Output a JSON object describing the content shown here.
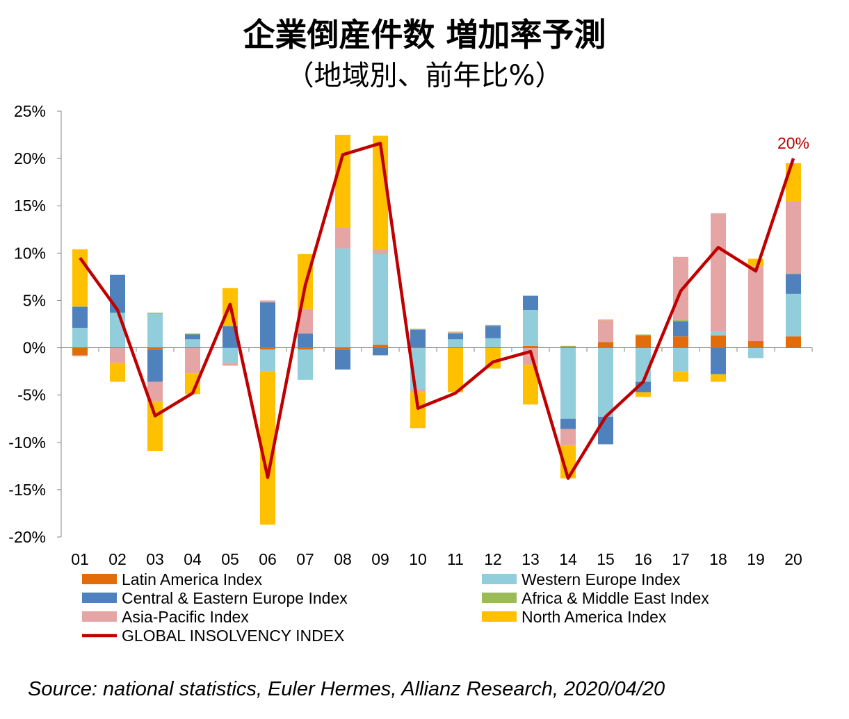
{
  "title": "企業倒産件数 増加率予測",
  "subtitle": "（地域別、前年比%）",
  "source": "Source: national statistics, Euler Hermes, Allianz Research, 2020/04/20",
  "chart_data": {
    "type": "bar",
    "stacked": true,
    "categories": [
      "01",
      "02",
      "03",
      "04",
      "05",
      "06",
      "07",
      "08",
      "09",
      "10",
      "11",
      "12",
      "13",
      "14",
      "15",
      "16",
      "17",
      "18",
      "19",
      "20"
    ],
    "ylim": [
      -20,
      25
    ],
    "yticks": [
      25,
      20,
      15,
      10,
      5,
      0,
      -5,
      -10,
      -15,
      -20
    ],
    "ytick_labels": [
      "25%",
      "20%",
      "15%",
      "10%",
      "5%",
      "0%",
      "-5%",
      "-10%",
      "-15%",
      "-20%"
    ],
    "series": [
      {
        "name": "Latin America Index",
        "color": "#E36C0A",
        "values": [
          -0.8,
          0,
          -0.2,
          0,
          0,
          -0.2,
          -0.2,
          -0.2,
          0.3,
          0,
          0,
          0,
          0.2,
          0.1,
          0.6,
          1.3,
          1.2,
          1.3,
          0.7,
          1.2
        ]
      },
      {
        "name": "Western Europe Index",
        "color": "#92CDDC",
        "values": [
          2.1,
          3.7,
          3.6,
          0.9,
          -1.6,
          -2.3,
          -3.2,
          10.5,
          9.6,
          -4.4,
          0.9,
          1.0,
          3.8,
          -7.5,
          -7.3,
          -3.6,
          -2.5,
          0.4,
          -1.1,
          4.5
        ]
      },
      {
        "name": "Central & Eastern Europe Index",
        "color": "#4F81BD",
        "values": [
          2.2,
          4.0,
          -3.4,
          0.5,
          2.3,
          4.8,
          1.5,
          -2.1,
          -0.8,
          1.9,
          0.6,
          1.3,
          1.5,
          -1.1,
          -2.9,
          -1.1,
          1.6,
          -2.8,
          0,
          2.1
        ]
      },
      {
        "name": "Africa & Middle East Index",
        "color": "#9BBB59",
        "values": [
          0.1,
          0,
          0.1,
          0.1,
          0,
          0,
          0,
          0,
          0.1,
          0.1,
          0.1,
          0.1,
          0,
          0.1,
          0,
          0.1,
          0.1,
          0,
          0,
          0
        ]
      },
      {
        "name": "Asia-Pacific Index",
        "color": "#E6A5A5",
        "values": [
          -0.1,
          -1.6,
          -2.1,
          -2.7,
          -0.3,
          0.2,
          2.6,
          2.2,
          0.4,
          -0.3,
          0.1,
          0,
          -1.8,
          -1.7,
          2.3,
          0,
          6.7,
          12.5,
          7.9,
          7.7
        ]
      },
      {
        "name": "North America Index",
        "color": "#FFC000",
        "values": [
          6.0,
          -2.0,
          -5.2,
          -2.2,
          4.0,
          -16.2,
          5.8,
          9.8,
          12.0,
          -3.8,
          -4.7,
          -2.2,
          -4.2,
          -3.5,
          0.1,
          -0.5,
          -1.1,
          -0.8,
          0.8,
          4.0
        ]
      }
    ],
    "line": {
      "name": "GLOBAL INSOLVENCY INDEX",
      "color": "#C00000",
      "values": [
        9.5,
        4.0,
        -7.2,
        -4.8,
        4.6,
        -13.7,
        6.6,
        20.4,
        21.6,
        -6.4,
        -4.8,
        -1.5,
        -0.4,
        -13.8,
        -7.3,
        -3.6,
        6.0,
        10.6,
        8.1,
        20.0
      ]
    },
    "annotation": {
      "text": "20%",
      "category": "20",
      "color": "#C00000"
    },
    "legend": {
      "placement": "bottom",
      "columns": 2
    }
  }
}
